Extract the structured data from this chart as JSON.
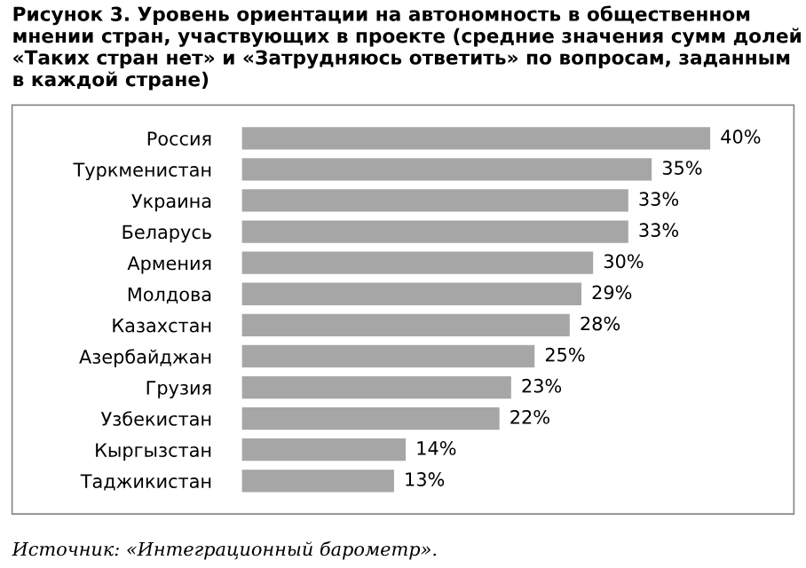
{
  "chart_data": {
    "type": "bar",
    "orientation": "horizontal",
    "title": "Рисунок 3. Уровень ориентации на автономность в общественном мнении стран, участвующих в проекте (средние значения сумм долей «Таких стран нет» и «Затрудняюсь ответить» по вопросам, заданным в каждой стране)",
    "categories": [
      "Россия",
      "Туркменистан",
      "Украина",
      "Беларусь",
      "Армения",
      "Молдова",
      "Казахстан",
      "Азербайджан",
      "Грузия",
      "Узбекистан",
      "Кыргызстан",
      "Таджикистан"
    ],
    "values": [
      40,
      35,
      33,
      33,
      30,
      29,
      28,
      25,
      23,
      22,
      14,
      13
    ],
    "value_labels": [
      "40%",
      "35%",
      "33%",
      "33%",
      "30%",
      "29%",
      "28%",
      "25%",
      "23%",
      "22%",
      "14%",
      "13%"
    ],
    "color": "#a6a6a6",
    "grid": false,
    "annotations": [
      "Источник: «Интеграционный барометр»."
    ]
  }
}
